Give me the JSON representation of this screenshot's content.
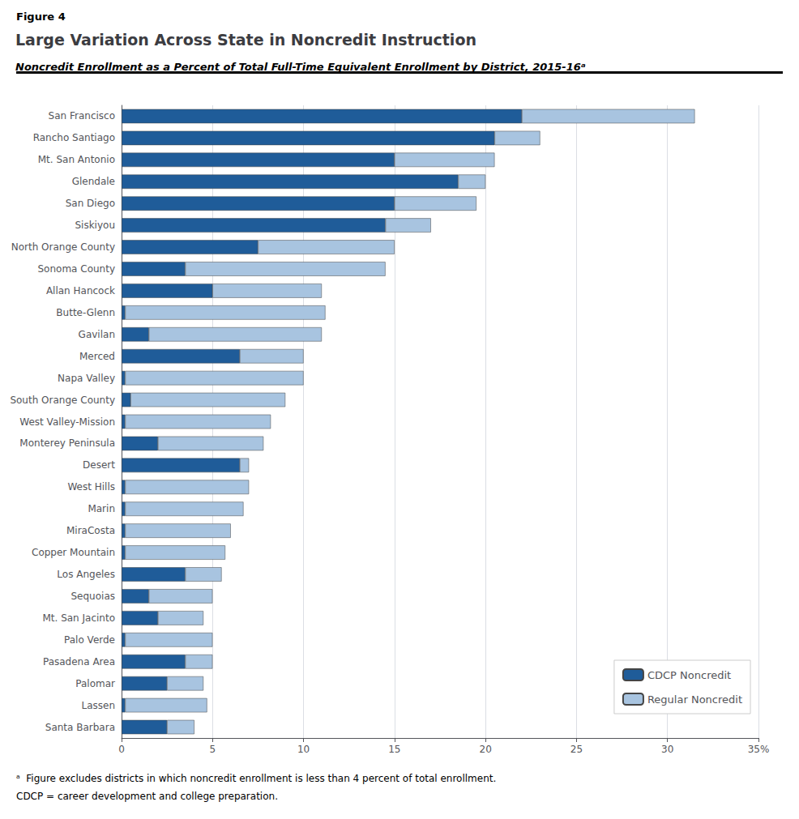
{
  "chart_data": {
    "type": "bar",
    "orientation": "horizontal",
    "stacked": true,
    "figure_label": "Figure 4",
    "title": "Large Variation Across State in Noncredit Instruction",
    "subtitle": "Noncredit Enrollment as a Percent of Total Full-Time Equivalent Enrollment by District, 2015-16ᵃ",
    "footnotes": [
      "ᵃ  Figure excludes districts in which noncredit enrollment is less than 4 percent of total enrollment.",
      "CDCP = career development and college preparation."
    ],
    "categories": [
      "San Francisco",
      "Rancho Santiago",
      "Mt. San Antonio",
      "Glendale",
      "San Diego",
      "Siskiyou",
      "North Orange County",
      "Sonoma County",
      "Allan Hancock",
      "Butte-Glenn",
      "Gavilan",
      "Merced",
      "Napa Valley",
      "South Orange County",
      "West Valley-Mission",
      "Monterey Peninsula",
      "Desert",
      "West Hills",
      "Marin",
      "MiraCosta",
      "Copper Mountain",
      "Los Angeles",
      "Sequoias",
      "Mt. San Jacinto",
      "Palo Verde",
      "Pasadena Area",
      "Palomar",
      "Lassen",
      "Santa Barbara"
    ],
    "series": [
      {
        "name": "CDCP Noncredit",
        "color": "#1F5C99",
        "values": [
          22.0,
          20.5,
          15.0,
          18.5,
          15.0,
          14.5,
          7.5,
          3.5,
          5.0,
          0.2,
          1.5,
          6.5,
          0.2,
          0.5,
          0.2,
          2.0,
          6.5,
          0.2,
          0.2,
          0.2,
          0.2,
          3.5,
          1.5,
          2.0,
          0.2,
          3.5,
          2.5,
          0.2,
          2.5
        ]
      },
      {
        "name": "Regular Noncredit",
        "color": "#A8C4E0",
        "values": [
          9.5,
          2.5,
          5.5,
          1.5,
          4.5,
          2.5,
          7.5,
          11.0,
          6.0,
          11.0,
          9.5,
          3.5,
          9.8,
          8.5,
          8.0,
          5.8,
          0.5,
          6.8,
          6.5,
          5.8,
          5.5,
          2.0,
          3.5,
          2.5,
          4.8,
          1.5,
          2.0,
          4.5,
          1.5
        ]
      }
    ],
    "xlim": [
      0,
      35
    ],
    "xticks": [
      0,
      5,
      10,
      15,
      20,
      25,
      30,
      {
        "value": 35,
        "label": "35%"
      }
    ],
    "grid": true,
    "legend": "lower right"
  }
}
